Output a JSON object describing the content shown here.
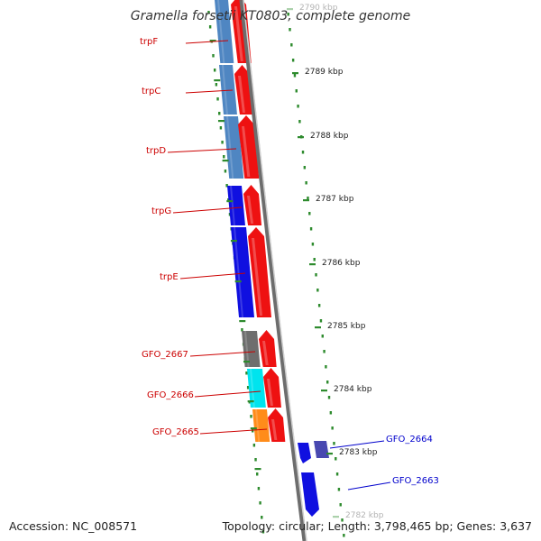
{
  "title": "Gramella forsetii KT0803, complete genome",
  "accession": "Accession: NC_008571",
  "topology": "Topology: circular; Length: 3,798,465 bp; Genes: 3,637",
  "colors": {
    "background": "#ffffff",
    "backbone": "#8c8c8c",
    "tick": "#2e8b2e",
    "reverse_label": "#cc0000",
    "forward_label": "#0000cc",
    "cds_arrow": "#ee1111",
    "cog_steelblue": "#4f86c2",
    "cog_blue": "#1010e0",
    "cog_grey": "#6e6e6e",
    "cog_cyan": "#00e4ee",
    "cog_orange": "#ff8c1a",
    "cog_slateblue": "#4848b0"
  },
  "kbp_ticks": [
    {
      "label": "2790 kbp",
      "faded": true
    },
    {
      "label": "2789 kbp"
    },
    {
      "label": "2788 kbp"
    },
    {
      "label": "2787 kbp"
    },
    {
      "label": "2786 kbp"
    },
    {
      "label": "2785 kbp"
    },
    {
      "label": "2784 kbp"
    },
    {
      "label": "2783 kbp"
    },
    {
      "label": "2782 kbp",
      "faded": true
    }
  ],
  "genes_reverse": [
    {
      "name": "trpF",
      "cog": "steelblue"
    },
    {
      "name": "trpC",
      "cog": "steelblue"
    },
    {
      "name": "trpD",
      "cog": "steelblue"
    },
    {
      "name": "trpG",
      "cog": "blue"
    },
    {
      "name": "trpE",
      "cog": "blue"
    },
    {
      "name": "GFO_2667",
      "cog": "grey"
    },
    {
      "name": "GFO_2666",
      "cog": "cyan"
    },
    {
      "name": "GFO_2665",
      "cog": "orange"
    }
  ],
  "genes_forward": [
    {
      "name": "GFO_2664",
      "cog": "blue"
    },
    {
      "name": "GFO_2663",
      "cog": "blue"
    }
  ]
}
